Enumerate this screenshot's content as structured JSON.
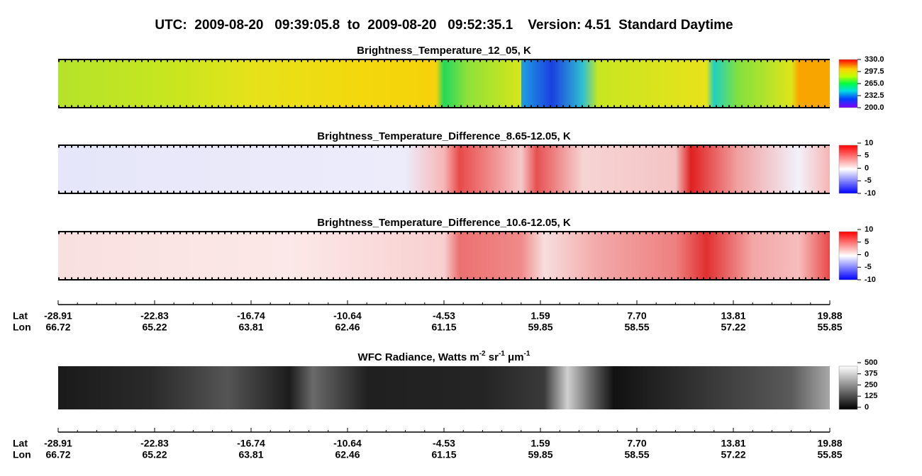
{
  "header": {
    "title": "UTC:  2009-08-20   09:39:05.8  to  2009-08-20   09:52:35.1    Version: 4.51  Standard Daytime"
  },
  "panels": [
    {
      "title": [
        {
          "text": "Brightness_Temperature_12_05, K"
        }
      ],
      "colorbar": {
        "ticks": [
          {
            "value": 330,
            "label": "330.0"
          },
          {
            "value": 297.5,
            "label": "297.5"
          },
          {
            "value": 265,
            "label": "265.0"
          },
          {
            "value": 232.5,
            "label": "232.5"
          },
          {
            "value": 200,
            "label": "200.0"
          }
        ]
      }
    },
    {
      "title": [
        {
          "text": "Brightness_Temperature_Difference_8.65-12.05, K"
        }
      ],
      "colorbar": {
        "ticks": [
          10,
          5,
          0,
          -5,
          -10
        ]
      }
    },
    {
      "title": [
        {
          "text": "Brightness_Temperature_Difference_10.6-12.05, K"
        }
      ],
      "colorbar": {
        "ticks": [
          10,
          5,
          0,
          -5,
          -10
        ]
      }
    },
    {
      "title": [
        {
          "text": "WFC Radiance, Watts m"
        },
        {
          "sup": "-2"
        },
        {
          "text": " sr"
        },
        {
          "sup": "-1"
        },
        {
          "text": " μm"
        },
        {
          "sup": "-1"
        }
      ],
      "colorbar": {
        "ticks": [
          500,
          375,
          250,
          125,
          0
        ]
      }
    }
  ],
  "axes": [
    {
      "lat_label": "Lat",
      "lon_label": "Lon",
      "lat": [
        -28.91,
        -22.83,
        -16.74,
        -10.64,
        -4.53,
        1.59,
        {
          "value": 7.7,
          "label": "7.70"
        },
        13.81,
        19.88
      ],
      "lon": [
        66.72,
        65.22,
        63.81,
        62.46,
        61.15,
        59.85,
        58.55,
        57.22,
        55.85
      ]
    },
    {
      "lat_label": "Lat",
      "lon_label": "Lon",
      "lat": [
        -28.91,
        -22.83,
        -16.74,
        -10.64,
        -4.53,
        1.59,
        {
          "value": 7.7,
          "label": "7.70"
        },
        13.81,
        19.88
      ],
      "lon": [
        66.72,
        65.22,
        63.81,
        62.46,
        61.15,
        59.85,
        58.55,
        57.22,
        55.85
      ]
    }
  ]
}
